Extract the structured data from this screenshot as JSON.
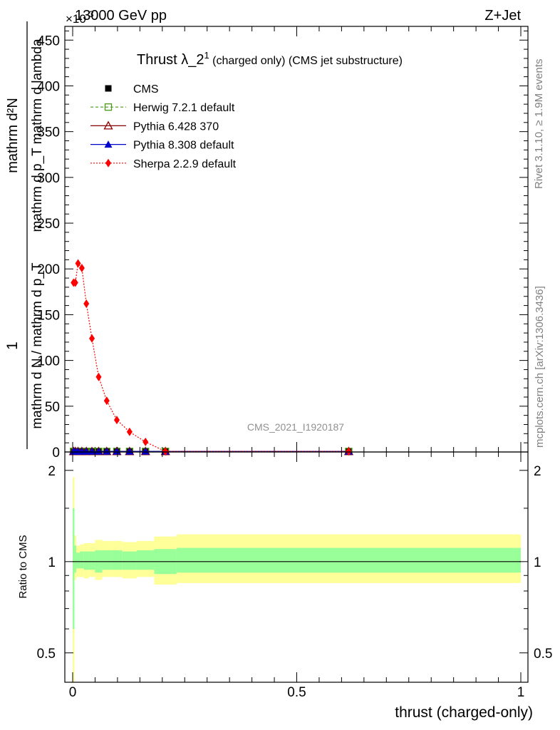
{
  "header": {
    "energy_label": "13000 GeV pp",
    "process_label": "Z+Jet",
    "exponent_label": "×10",
    "exponent_power": "-3"
  },
  "side_text": {
    "rivet": "Rivet 3.1.10, ≥ 1.9M events",
    "mcplots": "mcplots.cern.ch [arXiv:1306.3436]"
  },
  "watermark": "CMS_2021_I1920187",
  "chart_data": [
    {
      "type": "line",
      "title_main": "Thrust λ_2",
      "title_sup": "1",
      "title_rest": " (charged only) (CMS jet substructure)",
      "ylabel_numerator": "mathrm d²N",
      "ylabel_denominator": "mathrm d p_T mathrm d lambda",
      "ylabel_prefix": "1",
      "ylabel_main": "mathrm d N / mathrm d p_T",
      "xlim": [
        0,
        1
      ],
      "ylim": [
        0,
        465
      ],
      "y_ticks": [
        0,
        50,
        100,
        150,
        200,
        250,
        300,
        350,
        400,
        450
      ],
      "y_tick_labels": [
        "0",
        "50",
        "100",
        "150",
        "200",
        "250",
        "300",
        "350",
        "400",
        "450"
      ],
      "legend_position": "top-left",
      "x_bin_edges": [
        0,
        0.004,
        0.008,
        0.016,
        0.025,
        0.036,
        0.05,
        0.066,
        0.086,
        0.111,
        0.143,
        0.182,
        0.232,
        1.0
      ],
      "x": [
        0.002,
        0.006,
        0.012,
        0.0205,
        0.0305,
        0.043,
        0.058,
        0.076,
        0.0985,
        0.127,
        0.1625,
        0.207,
        0.616
      ],
      "series": [
        {
          "name": "CMS",
          "style": "data",
          "color": "#000000",
          "marker": "square-filled",
          "values": [
            0.6,
            0.6,
            0.6,
            0.6,
            0.6,
            0.6,
            0.6,
            0.6,
            0.6,
            0.6,
            0.6,
            0.6,
            0.6
          ]
        },
        {
          "name": "Herwig 7.2.1 default",
          "style": "dashed",
          "color": "#4a9a1a",
          "marker": "square-open",
          "values": [
            0.6,
            0.6,
            0.6,
            0.6,
            0.6,
            0.6,
            0.6,
            0.6,
            0.6,
            0.6,
            0.6,
            0.6,
            0.6
          ]
        },
        {
          "name": "Pythia 6.428 370",
          "style": "solid",
          "color": "#8b0000",
          "marker": "triangle-open",
          "values": [
            0.6,
            0.6,
            0.6,
            0.6,
            0.6,
            0.6,
            0.6,
            0.6,
            0.6,
            0.6,
            0.6,
            0.6,
            0.6
          ]
        },
        {
          "name": "Pythia 8.308 default",
          "style": "solid",
          "color": "#0000cc",
          "marker": "triangle-filled",
          "values": [
            0.6,
            0.6,
            0.6,
            0.6,
            0.6,
            0.6,
            0.6,
            0.6,
            0.6,
            0.6,
            0.6,
            0.6,
            0.6
          ]
        },
        {
          "name": "Sherpa 2.2.9 default",
          "style": "dotted",
          "color": "#ff0000",
          "marker": "diamond-filled",
          "values": [
            185,
            185,
            206,
            201,
            162,
            124,
            82,
            56,
            35,
            22,
            11,
            0.6,
            0.6
          ]
        }
      ]
    },
    {
      "type": "area",
      "ylabel": "Ratio to CMS",
      "xlabel": "thrust (charged-only)",
      "scale": "log",
      "ylim": [
        0.4,
        2.3
      ],
      "y_ticks": [
        0.5,
        1,
        2
      ],
      "y_tick_labels": [
        "0.5",
        "1",
        "2"
      ],
      "x_ticks": [
        0,
        0.5,
        1
      ],
      "x_tick_labels": [
        "0",
        "0.5",
        "1"
      ],
      "bands": {
        "green_color": "#99ff99",
        "yellow_color": "#ffff99",
        "bin_edges": [
          0,
          0.004,
          0.008,
          0.016,
          0.025,
          0.036,
          0.05,
          0.066,
          0.086,
          0.111,
          0.143,
          0.182,
          0.232,
          1.0
        ],
        "green_low": [
          0.6,
          0.92,
          0.95,
          0.95,
          0.94,
          0.94,
          0.92,
          0.94,
          0.94,
          0.94,
          0.94,
          0.91,
          0.92
        ],
        "green_high": [
          1.5,
          1.13,
          1.07,
          1.08,
          1.08,
          1.08,
          1.09,
          1.09,
          1.09,
          1.08,
          1.09,
          1.1,
          1.11
        ],
        "yellow_low": [
          0.35,
          0.87,
          0.89,
          0.89,
          0.88,
          0.89,
          0.87,
          0.89,
          0.89,
          0.88,
          0.89,
          0.84,
          0.85
        ],
        "yellow_high": [
          1.9,
          1.22,
          1.13,
          1.14,
          1.15,
          1.15,
          1.18,
          1.17,
          1.17,
          1.16,
          1.17,
          1.21,
          1.23
        ]
      },
      "reference_line": 1
    }
  ]
}
